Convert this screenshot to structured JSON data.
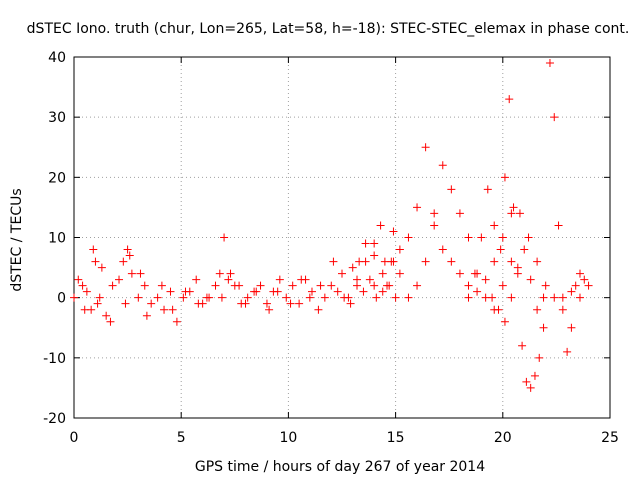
{
  "chart_data": {
    "type": "scatter",
    "title": "dSTEC Iono. truth (chur, Lon=265, Lat=58, h=-18): STEC-STEC_elemax in phase cont.",
    "xlabel": "GPS time / hours of day 267 of year 2014",
    "ylabel": "dSTEC  / TECUs",
    "xlim": [
      0,
      25
    ],
    "ylim": [
      -20,
      40
    ],
    "xticks": [
      0,
      5,
      10,
      15,
      20,
      25
    ],
    "yticks": [
      -20,
      -10,
      0,
      10,
      20,
      30,
      40
    ],
    "xtick_labels": [
      "0",
      "5",
      "10",
      "15",
      "20",
      "25"
    ],
    "ytick_labels": [
      "-20",
      "-10",
      "0",
      "10",
      "20",
      "30",
      "40"
    ],
    "grid": true,
    "marker": "+",
    "colors": {
      "series": "#ff0000",
      "grid": "#a0a0a0",
      "axis": "#000000"
    },
    "series": [
      {
        "x": [
          0.0,
          0.2,
          0.4,
          0.6,
          0.8,
          1.0,
          1.2,
          1.5,
          1.8,
          2.1,
          2.4,
          2.7,
          3.0,
          3.3,
          3.6,
          3.9,
          4.2,
          4.5,
          4.8,
          5.1,
          5.4,
          5.7,
          6.0,
          6.3,
          6.6,
          6.9,
          7.2,
          7.5,
          7.8,
          8.1,
          8.4,
          8.7,
          9.0,
          9.3,
          9.6,
          9.9,
          10.2,
          10.5,
          10.8,
          11.1,
          11.4,
          11.7,
          12.0,
          12.3,
          12.6,
          12.9,
          13.2,
          13.5,
          13.8,
          14.1,
          14.4,
          14.7,
          15.0
        ],
        "y": [
          0,
          3,
          2,
          1,
          -2,
          6,
          0,
          -3,
          2,
          3,
          -1,
          4,
          0,
          2,
          -1,
          0,
          -2,
          1,
          -4,
          0,
          1,
          3,
          -1,
          0,
          2,
          0,
          3,
          2,
          -1,
          0,
          1,
          2,
          -1,
          1,
          3,
          0,
          2,
          -1,
          3,
          1,
          -2,
          0,
          2,
          1,
          0,
          -1,
          2,
          1,
          3,
          0,
          1,
          2,
          0
        ]
      },
      {
        "x": [
          0.5,
          0.9,
          1.1,
          1.3,
          1.7,
          2.3,
          2.5,
          2.6,
          3.1,
          3.4,
          4.1,
          4.6,
          5.2,
          5.8,
          6.2,
          6.8,
          7.0,
          7.3,
          7.7,
          8.0,
          8.5,
          9.1,
          9.5,
          10.1,
          10.6,
          11.0,
          11.5,
          12.1,
          12.5,
          13.0,
          13.3,
          13.6,
          14.0,
          14.5,
          14.9
        ],
        "y": [
          -2,
          8,
          -1,
          5,
          -4,
          6,
          8,
          7,
          4,
          -3,
          2,
          -2,
          1,
          -1,
          0,
          4,
          10,
          4,
          2,
          -1,
          1,
          -2,
          1,
          -1,
          3,
          0,
          2,
          6,
          4,
          5,
          6,
          9,
          7,
          6,
          11
        ]
      },
      {
        "x": [
          12.8,
          13.2,
          13.6,
          14.0,
          14.3,
          14.6,
          14.9,
          15.2,
          15.6,
          16.0,
          16.4,
          16.8,
          17.2,
          17.6,
          18.0,
          18.4,
          18.8,
          19.2,
          19.6,
          20.0,
          20.4
        ],
        "y": [
          0,
          3,
          6,
          9,
          12,
          2,
          6,
          4,
          10,
          15,
          25,
          12,
          8,
          6,
          4,
          2,
          1,
          3,
          6,
          10,
          14
        ]
      },
      {
        "x": [
          14.0,
          14.4,
          14.8,
          15.2,
          15.6,
          16.0,
          16.4,
          16.8,
          17.2,
          17.6,
          18.0,
          18.4,
          18.8,
          19.2,
          19.6,
          20.0,
          20.4,
          20.8,
          21.2,
          21.6,
          22.0,
          22.4,
          22.8,
          23.2,
          23.6,
          24.0
        ],
        "y": [
          2,
          4,
          6,
          8,
          0,
          2,
          6,
          14,
          22,
          18,
          14,
          10,
          4,
          0,
          -2,
          2,
          6,
          14,
          10,
          6,
          2,
          0,
          -2,
          1,
          4,
          2
        ]
      },
      {
        "x": [
          18.4,
          18.7,
          19.0,
          19.3,
          19.6,
          19.9,
          20.1,
          20.3,
          20.5,
          20.7,
          20.9,
          21.1,
          21.3,
          21.5,
          21.7,
          21.9
        ],
        "y": [
          0,
          4,
          10,
          18,
          12,
          8,
          20,
          33,
          15,
          5,
          -8,
          -14,
          -15,
          -13,
          -10,
          -5
        ]
      },
      {
        "x": [
          19.5,
          19.8,
          20.1,
          20.4,
          20.7,
          21.0,
          21.3,
          21.6,
          21.9,
          22.2,
          22.4,
          22.6,
          22.8,
          23.0,
          23.2,
          23.4,
          23.6,
          23.8
        ],
        "y": [
          0,
          -2,
          -4,
          0,
          4,
          8,
          3,
          -2,
          0,
          39,
          30,
          12,
          0,
          -9,
          -5,
          2,
          0,
          3
        ]
      }
    ]
  }
}
